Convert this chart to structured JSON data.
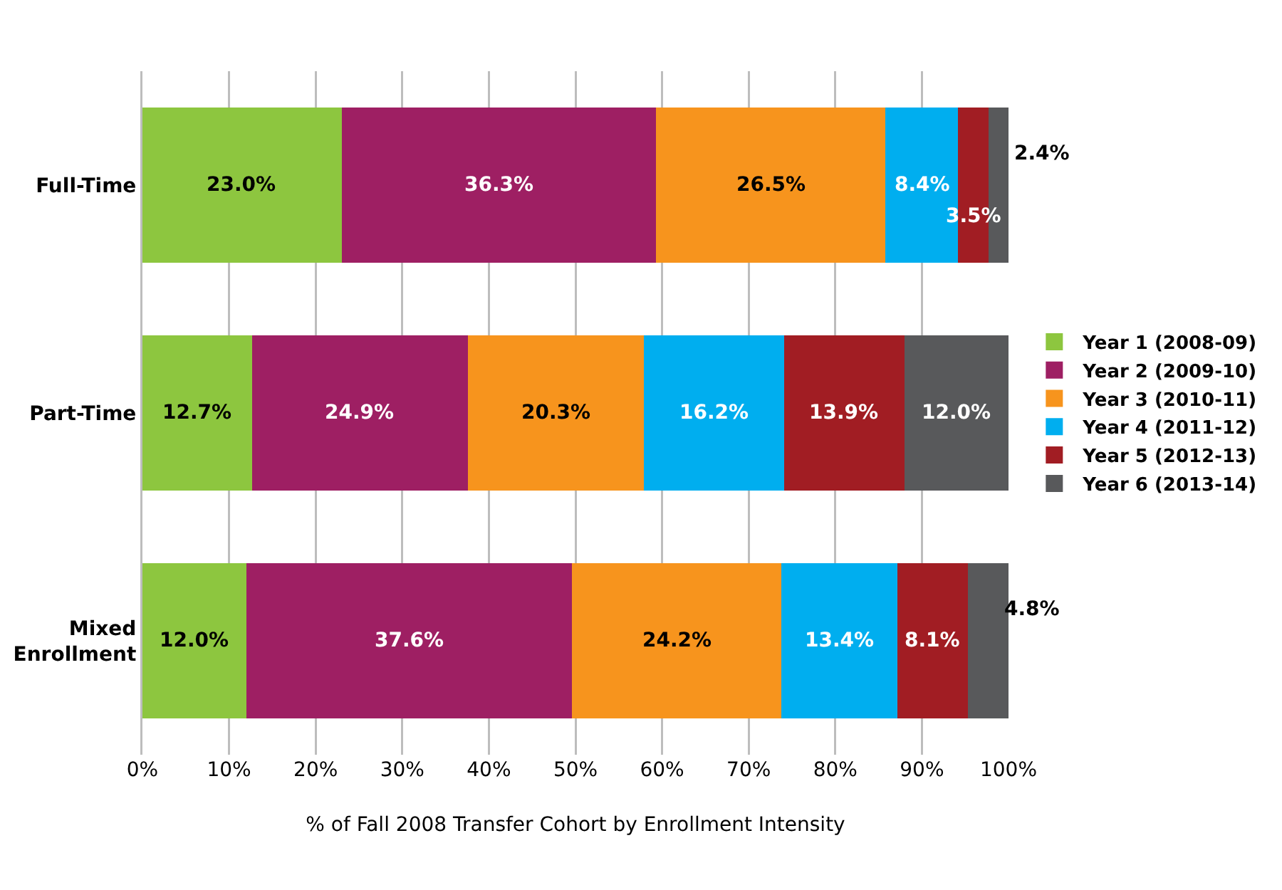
{
  "chart_data": {
    "type": "bar",
    "orientation": "horizontal",
    "stacked": true,
    "xlabel": "% of Fall 2008 Transfer Cohort by Enrollment Intensity",
    "categories": [
      "Full-Time",
      "Part-Time",
      "Mixed Enrollment"
    ],
    "series": [
      {
        "name": "Year 1 (2008-09)",
        "color": "#8dc63f",
        "values": [
          23.0,
          12.7,
          12.0
        ],
        "value_labels": [
          "23.0%",
          "12.7%",
          "12.0%"
        ]
      },
      {
        "name": "Year 2 (2009-10)",
        "color": "#9e1f63",
        "values": [
          36.3,
          24.9,
          37.6
        ],
        "value_labels": [
          "36.3%",
          "24.9%",
          "37.6%"
        ]
      },
      {
        "name": "Year 3 (2010-11)",
        "color": "#f7941d",
        "values": [
          26.5,
          20.3,
          24.2
        ],
        "value_labels": [
          "26.5%",
          "20.3%",
          "24.2%"
        ]
      },
      {
        "name": "Year 4 (2011-12)",
        "color": "#00aeef",
        "values": [
          8.4,
          16.2,
          13.4
        ],
        "value_labels": [
          "8.4%",
          "16.2%",
          "13.4%"
        ]
      },
      {
        "name": "Year 5 (2012-13)",
        "color": "#a11d23",
        "values": [
          3.5,
          13.9,
          8.1
        ],
        "value_labels": [
          "3.5%",
          "13.9%",
          "8.1%"
        ]
      },
      {
        "name": "Year 6 (2013-14)",
        "color": "#58595b",
        "values": [
          2.4,
          12.0,
          4.8
        ],
        "value_labels": [
          "2.4%",
          "12.0%",
          "4.8%"
        ]
      }
    ],
    "xlim": [
      0,
      100
    ],
    "xticks": [
      {
        "value": 0,
        "label": "0%"
      },
      {
        "value": 10,
        "label": "10%"
      },
      {
        "value": 20,
        "label": "20%"
      },
      {
        "value": 30,
        "label": "30%"
      },
      {
        "value": 40,
        "label": "40%"
      },
      {
        "value": 50,
        "label": "50%"
      },
      {
        "value": 60,
        "label": "60%"
      },
      {
        "value": 70,
        "label": "70%"
      },
      {
        "value": 80,
        "label": "80%"
      },
      {
        "value": 90,
        "label": "90%"
      },
      {
        "value": 100,
        "label": "100%"
      }
    ],
    "grid": "x",
    "legend": "right"
  }
}
